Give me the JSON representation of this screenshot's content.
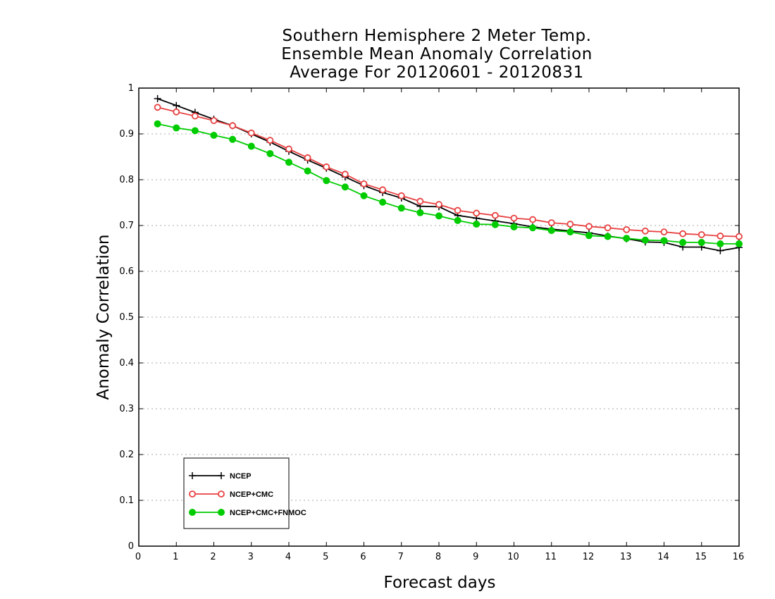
{
  "title_lines": [
    "Southern Hemisphere 2 Meter Temp.",
    "Ensemble Mean Anomaly Correlation",
    "Average For 20120601 - 20120831"
  ],
  "chart_data": {
    "type": "line",
    "title": "Southern Hemisphere 2 Meter Temp. Ensemble Mean Anomaly Correlation Average For 20120601 - 20120831",
    "xlabel": "Forecast days",
    "ylabel": "Anomaly Correlation",
    "xlim": [
      0,
      16
    ],
    "ylim": [
      0,
      1
    ],
    "xticks": [
      0,
      1,
      2,
      3,
      4,
      5,
      6,
      7,
      8,
      9,
      10,
      11,
      12,
      13,
      14,
      15,
      16
    ],
    "yticks": [
      0,
      0.1,
      0.2,
      0.3,
      0.4,
      0.5,
      0.6,
      0.7,
      0.8,
      0.9,
      1
    ],
    "ytick_labels": [
      "0",
      "0.1",
      "0.2",
      "0.3",
      "0.4",
      "0.5",
      "0.6",
      "0.7",
      "0.8",
      "0.9",
      "1"
    ],
    "grid": "horizontal dotted",
    "legend_position": "bottom-left",
    "x": [
      0.5,
      1,
      1.5,
      2,
      2.5,
      3,
      3.5,
      4,
      4.5,
      5,
      5.5,
      6,
      6.5,
      7,
      7.5,
      8,
      8.5,
      9,
      9.5,
      10,
      10.5,
      11,
      11.5,
      12,
      12.5,
      13,
      13.5,
      14,
      14.5,
      15,
      15.5,
      16
    ],
    "series": [
      {
        "name": "NCEP",
        "color": "#000000",
        "marker": "plus",
        "values": [
          0.977,
          0.962,
          0.947,
          0.932,
          0.918,
          0.9,
          0.882,
          0.862,
          0.843,
          0.825,
          0.806,
          0.787,
          0.772,
          0.76,
          0.742,
          0.741,
          0.722,
          0.716,
          0.71,
          0.704,
          0.697,
          0.692,
          0.688,
          0.684,
          0.677,
          0.671,
          0.664,
          0.663,
          0.653,
          0.653,
          0.645,
          0.652
        ]
      },
      {
        "name": "NCEP+CMC",
        "color": "#e84040",
        "marker": "open-circle",
        "values": [
          0.958,
          0.948,
          0.939,
          0.929,
          0.918,
          0.902,
          0.886,
          0.867,
          0.848,
          0.828,
          0.812,
          0.791,
          0.778,
          0.765,
          0.753,
          0.746,
          0.733,
          0.727,
          0.722,
          0.716,
          0.713,
          0.706,
          0.703,
          0.698,
          0.695,
          0.691,
          0.688,
          0.686,
          0.682,
          0.68,
          0.677,
          0.676
        ]
      },
      {
        "name": "NCEP+CMC+FNMOC",
        "color": "#00cc00",
        "marker": "filled-circle",
        "values": [
          0.922,
          0.913,
          0.907,
          0.897,
          0.888,
          0.873,
          0.857,
          0.838,
          0.819,
          0.798,
          0.784,
          0.765,
          0.751,
          0.738,
          0.728,
          0.721,
          0.711,
          0.703,
          0.702,
          0.697,
          0.695,
          0.689,
          0.686,
          0.678,
          0.676,
          0.672,
          0.668,
          0.667,
          0.663,
          0.663,
          0.66,
          0.66
        ]
      }
    ]
  }
}
